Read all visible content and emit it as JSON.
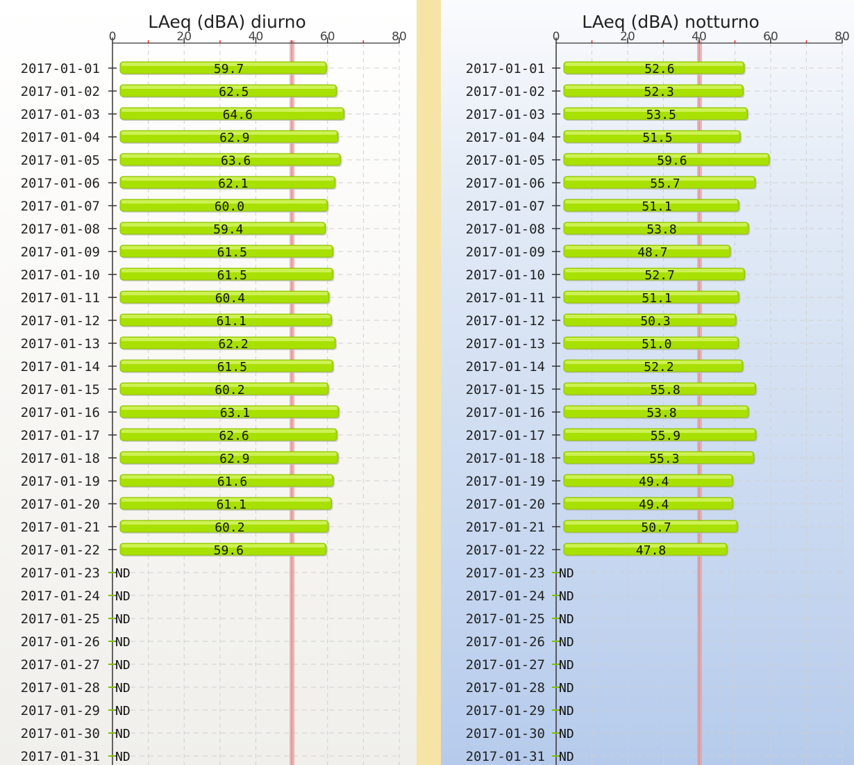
{
  "chart_data": [
    {
      "type": "bar",
      "orientation": "horizontal",
      "title": "LAeq (dBA) diurno",
      "xlim": [
        0,
        80
      ],
      "x_ticks": [
        "0",
        "20",
        "40",
        "60",
        "80"
      ],
      "threshold": 50,
      "grid": true,
      "bar_color": "#a8e000",
      "threshold_color": "#e8a0a0",
      "missing_label": "ND",
      "categories": [
        "2017-01-01",
        "2017-01-02",
        "2017-01-03",
        "2017-01-04",
        "2017-01-05",
        "2017-01-06",
        "2017-01-07",
        "2017-01-08",
        "2017-01-09",
        "2017-01-10",
        "2017-01-11",
        "2017-01-12",
        "2017-01-13",
        "2017-01-14",
        "2017-01-15",
        "2017-01-16",
        "2017-01-17",
        "2017-01-18",
        "2017-01-19",
        "2017-01-20",
        "2017-01-21",
        "2017-01-22",
        "2017-01-23",
        "2017-01-24",
        "2017-01-25",
        "2017-01-26",
        "2017-01-27",
        "2017-01-28",
        "2017-01-29",
        "2017-01-30",
        "2017-01-31"
      ],
      "values": [
        59.7,
        62.5,
        64.6,
        62.9,
        63.6,
        62.1,
        60.0,
        59.4,
        61.5,
        61.5,
        60.4,
        61.1,
        62.2,
        61.5,
        60.2,
        63.1,
        62.6,
        62.9,
        61.6,
        61.1,
        60.2,
        59.6,
        null,
        null,
        null,
        null,
        null,
        null,
        null,
        null,
        null
      ],
      "value_labels": [
        "59.7",
        "62.5",
        "64.6",
        "62.9",
        "63.6",
        "62.1",
        "60.0",
        "59.4",
        "61.5",
        "61.5",
        "60.4",
        "61.1",
        "62.2",
        "61.5",
        "60.2",
        "63.1",
        "62.6",
        "62.9",
        "61.6",
        "61.1",
        "60.2",
        "59.6",
        null,
        null,
        null,
        null,
        null,
        null,
        null,
        null,
        null
      ]
    },
    {
      "type": "bar",
      "orientation": "horizontal",
      "title": "LAeq (dBA) notturno",
      "xlim": [
        0,
        80
      ],
      "x_ticks": [
        "0",
        "20",
        "40",
        "60",
        "80"
      ],
      "threshold": 40,
      "grid": true,
      "bar_color": "#a8e000",
      "threshold_color": "#e8a0a0",
      "missing_label": "ND",
      "categories": [
        "2017-01-01",
        "2017-01-02",
        "2017-01-03",
        "2017-01-04",
        "2017-01-05",
        "2017-01-06",
        "2017-01-07",
        "2017-01-08",
        "2017-01-09",
        "2017-01-10",
        "2017-01-11",
        "2017-01-12",
        "2017-01-13",
        "2017-01-14",
        "2017-01-15",
        "2017-01-16",
        "2017-01-17",
        "2017-01-18",
        "2017-01-19",
        "2017-01-20",
        "2017-01-21",
        "2017-01-22",
        "2017-01-23",
        "2017-01-24",
        "2017-01-25",
        "2017-01-26",
        "2017-01-27",
        "2017-01-28",
        "2017-01-29",
        "2017-01-30",
        "2017-01-31"
      ],
      "values": [
        52.6,
        52.3,
        53.5,
        51.5,
        59.6,
        55.7,
        51.1,
        53.8,
        48.7,
        52.7,
        51.1,
        50.3,
        51.0,
        52.2,
        55.8,
        53.8,
        55.9,
        55.3,
        49.4,
        49.4,
        50.7,
        47.8,
        null,
        null,
        null,
        null,
        null,
        null,
        null,
        null,
        null
      ],
      "value_labels": [
        "52.6",
        "52.3",
        "53.5",
        "51.5",
        "59.6",
        "55.7",
        "51.1",
        "53.8",
        "48.7",
        "52.7",
        "51.1",
        "50.3",
        "51.0",
        "52.2",
        "55.8",
        "53.8",
        "55.9",
        "55.3",
        "49.4",
        "49.4",
        "50.7",
        "47.8",
        null,
        null,
        null,
        null,
        null,
        null,
        null,
        null,
        null
      ]
    }
  ]
}
